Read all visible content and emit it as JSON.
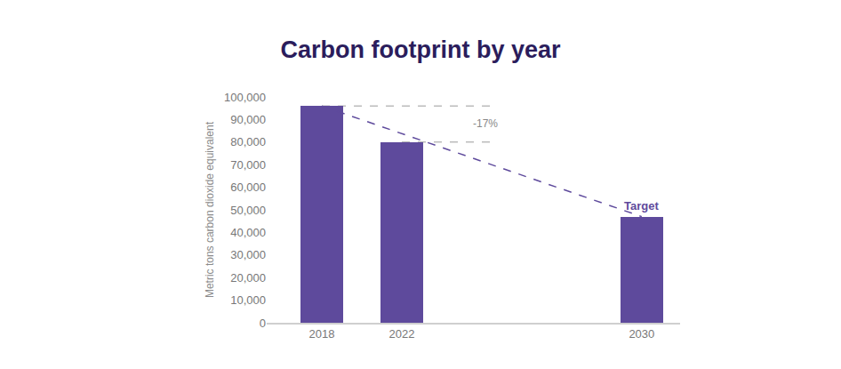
{
  "chart_data": {
    "type": "bar",
    "title": "Carbon footprint by year",
    "y_label": "Metric tons carbon dioxide equivalent",
    "categories": [
      "2018",
      "2022",
      null,
      null,
      "2030"
    ],
    "values": [
      96000,
      80000,
      null,
      null,
      47000
    ],
    "color": "#5e4a9c",
    "ylim": [
      0,
      100000
    ],
    "yticks": [
      0,
      {
        "value": 10000,
        "label": "10,000"
      },
      {
        "value": 20000,
        "label": "20,000"
      },
      {
        "value": 30000,
        "label": "30,000"
      },
      {
        "value": 40000,
        "label": "40,000"
      },
      {
        "value": 50000,
        "label": "50,000"
      },
      {
        "value": 60000,
        "label": "60,000"
      },
      {
        "value": 70000,
        "label": "70,000"
      },
      {
        "value": 80000,
        "label": "80,000"
      },
      {
        "value": 90000,
        "label": "90,000"
      },
      {
        "value": 100000,
        "label": "100,000"
      }
    ],
    "grid": false,
    "line_style": "dashed",
    "annotations": [
      {
        "text": "-17%"
      },
      {
        "text": "Target",
        "category": "2030"
      }
    ]
  }
}
